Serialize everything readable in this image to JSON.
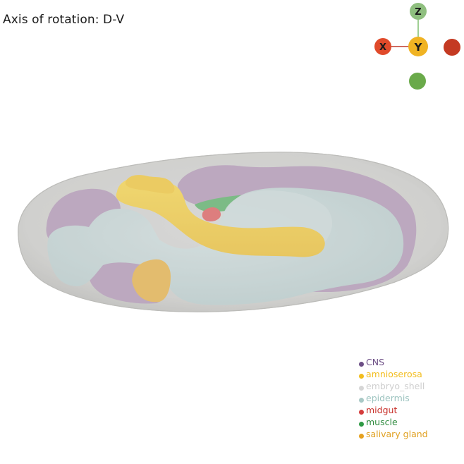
{
  "title": "Axis of rotation: D-V",
  "axes_widget": {
    "z_label": "Z",
    "y_label": "Y",
    "x_label": "X",
    "colors": {
      "z": "#8fbf7f",
      "y": "#f0b323",
      "x": "#e04a2a",
      "x_neg": "#c43a22",
      "y_neg": "#6aaa4a",
      "line_z": "#7fbf6f",
      "line_x": "#c0392b"
    }
  },
  "tissue_colors": {
    "shell": "#d4d4d2",
    "cns": "#b49ab8",
    "amnioserosa": "#f6cf45",
    "epidermis": "#c8d8d8",
    "midgut": "#e06262",
    "muscle": "#5fb36c",
    "salivary_gland": "#e8b54c"
  },
  "legend": [
    {
      "label": "CNS",
      "dot": "#6d4f86",
      "text": "#6d4f86"
    },
    {
      "label": "amnioserosa",
      "dot": "#f2bd1d",
      "text": "#f2bd1d"
    },
    {
      "label": "embryo_shell",
      "dot": "#d6d6d6",
      "text": "#cfcfcf"
    },
    {
      "label": "epidermis",
      "dot": "#a9c9c6",
      "text": "#9cc3bf"
    },
    {
      "label": "midgut",
      "dot": "#d43c3c",
      "text": "#c8302a"
    },
    {
      "label": "muscle",
      "dot": "#2f9a45",
      "text": "#2e8b3e"
    },
    {
      "label": "salivary gland",
      "dot": "#e5a11f",
      "text": "#e0a020"
    }
  ]
}
